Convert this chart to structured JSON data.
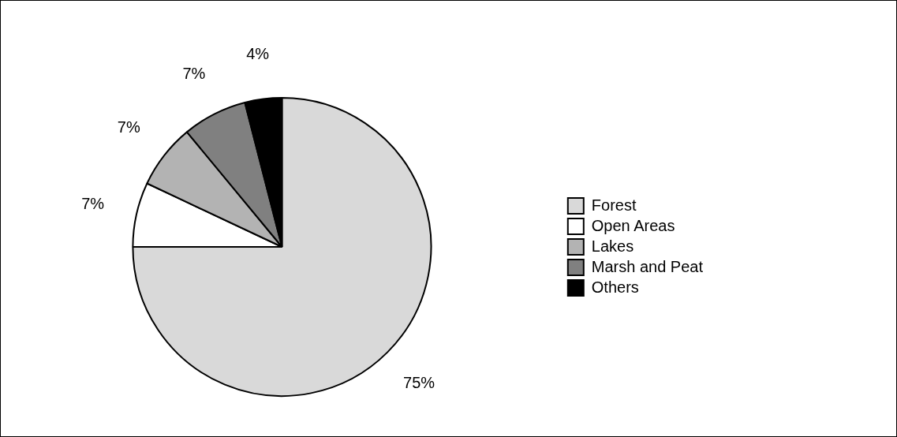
{
  "chart_data": {
    "type": "pie",
    "categories": [
      "Forest",
      "Open Areas",
      "Lakes",
      "Marsh and Peat",
      "Others"
    ],
    "values": [
      75,
      7,
      7,
      7,
      4
    ],
    "value_labels": [
      "75%",
      "7%",
      "7%",
      "7%",
      "4%"
    ],
    "colors": [
      "#d9d9d9",
      "#ffffff",
      "#b3b3b3",
      "#808080",
      "#000000"
    ],
    "legend": "right"
  }
}
